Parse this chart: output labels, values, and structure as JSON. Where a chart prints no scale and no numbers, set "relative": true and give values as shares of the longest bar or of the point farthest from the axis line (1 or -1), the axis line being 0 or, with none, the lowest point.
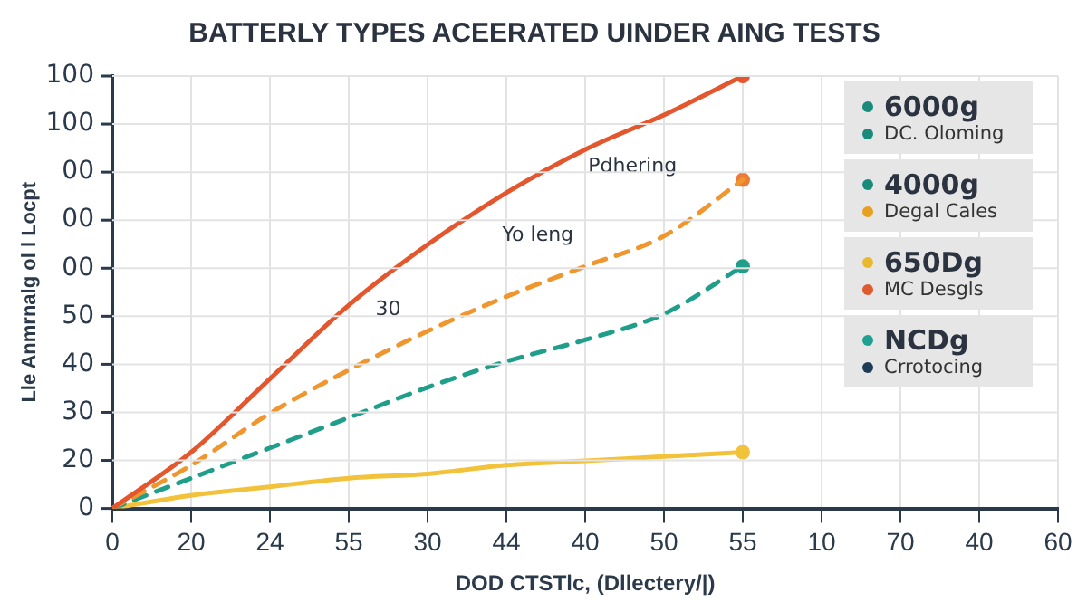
{
  "chart_data": {
    "type": "line",
    "title": "BATTERLY TYPES ACEERATED UINDER AING TESTS",
    "xlabel": "DOD CTSTlc, (Dllectery/|)",
    "ylabel": "Lle Anmrnalg ol l Locpt",
    "categories": [
      "0",
      "20",
      "24",
      "55",
      "30",
      "44",
      "40",
      "50",
      "55",
      "10",
      "70",
      "40",
      "60"
    ],
    "relative": true,
    "series": [
      {
        "color": "#e4572e",
        "line_style": "solid",
        "marker": "none",
        "values": [
          0,
          0.13,
          0.3,
          0.47,
          0.61,
          0.73,
          0.83,
          0.91,
          1,
          null,
          null,
          null,
          null
        ]
      },
      {
        "color": "#f0962e",
        "line_style": "dashed",
        "marker": "none",
        "values": [
          0,
          0.1,
          0.22,
          0.32,
          0.41,
          0.49,
          0.56,
          0.63,
          0.76,
          null,
          null,
          null,
          null
        ]
      },
      {
        "color": "#1f9e89",
        "line_style": "dashed",
        "marker": "none",
        "values": [
          0,
          0.07,
          0.14,
          0.21,
          0.28,
          0.34,
          0.39,
          0.45,
          0.56,
          null,
          null,
          null,
          null
        ]
      },
      {
        "color": "#f2c23a",
        "line_style": "solid",
        "marker": "none",
        "values": [
          0,
          0.03,
          0.05,
          0.07,
          0.08,
          0.1,
          0.11,
          0.12,
          0.13,
          null,
          null,
          null,
          null
        ]
      },
      {
        "type": "scatter",
        "color": "#e4572e",
        "values": [
          null,
          null,
          null,
          null,
          null,
          null,
          null,
          null,
          1,
          null,
          null,
          null,
          null
        ]
      },
      {
        "type": "scatter",
        "color": "#ee7a3a",
        "values": [
          null,
          null,
          null,
          null,
          null,
          null,
          null,
          null,
          0.76,
          null,
          null,
          null,
          null
        ]
      },
      {
        "type": "scatter",
        "color": "#1f9e89",
        "values": [
          null,
          null,
          null,
          null,
          null,
          null,
          null,
          null,
          0.56,
          null,
          null,
          null,
          null
        ]
      },
      {
        "type": "scatter",
        "color": "#f2c23a",
        "values": [
          null,
          null,
          null,
          null,
          null,
          null,
          null,
          null,
          0.13,
          null,
          null,
          null,
          null
        ]
      }
    ],
    "marker": "circle",
    "grid": true,
    "legend": false,
    "annotations": [
      "Pdhering",
      "Yo leng",
      "30",
      "6000g",
      "DC. Oloming",
      "4000g",
      "Degal Cales",
      "650Dg",
      "MC Desgls",
      "NCDg",
      "Crrotocing",
      "0",
      "20",
      "30",
      "40",
      "50",
      "00",
      "00",
      "00",
      "100",
      "100"
    ]
  }
}
